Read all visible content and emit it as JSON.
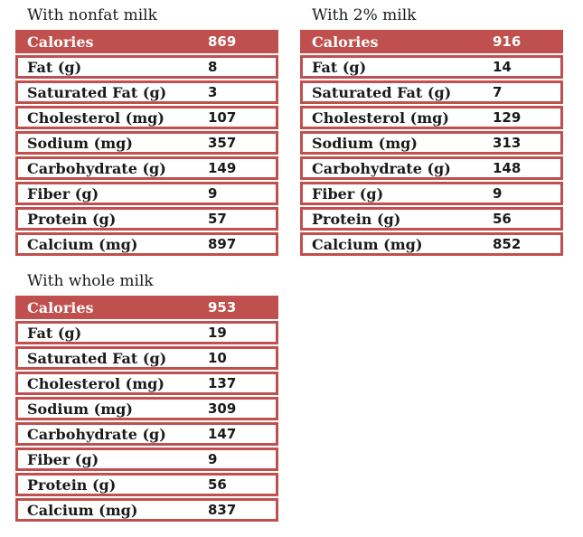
{
  "colors": {
    "accent": "#c0504d",
    "header_text": "#ffffff",
    "body_text": "#1a1a1a",
    "page_background": "#ffffff"
  },
  "tables": [
    {
      "title": "With nonfat milk",
      "header": {
        "label": "Calories",
        "value": "869"
      },
      "rows": [
        {
          "label": "Fat (g)",
          "value": "8"
        },
        {
          "label": "Saturated Fat (g)",
          "value": "3"
        },
        {
          "label": "Cholesterol (mg)",
          "value": "107"
        },
        {
          "label": "Sodium (mg)",
          "value": "357"
        },
        {
          "label": "Carbohydrate (g)",
          "value": "149"
        },
        {
          "label": "Fiber (g)",
          "value": "9"
        },
        {
          "label": "Protein (g)",
          "value": "57"
        },
        {
          "label": "Calcium (mg)",
          "value": "897"
        }
      ]
    },
    {
      "title": "With 2% milk",
      "header": {
        "label": "Calories",
        "value": "916"
      },
      "rows": [
        {
          "label": "Fat (g)",
          "value": "14"
        },
        {
          "label": "Saturated Fat (g)",
          "value": "7"
        },
        {
          "label": "Cholesterol (mg)",
          "value": "129"
        },
        {
          "label": "Sodium (mg)",
          "value": "313"
        },
        {
          "label": "Carbohydrate (g)",
          "value": "148"
        },
        {
          "label": "Fiber (g)",
          "value": "9"
        },
        {
          "label": "Protein (g)",
          "value": "56"
        },
        {
          "label": "Calcium (mg)",
          "value": "852"
        }
      ]
    },
    {
      "title": "With whole milk",
      "header": {
        "label": "Calories",
        "value": "953"
      },
      "rows": [
        {
          "label": "Fat (g)",
          "value": "19"
        },
        {
          "label": "Saturated Fat (g)",
          "value": "10"
        },
        {
          "label": "Cholesterol (mg)",
          "value": "137"
        },
        {
          "label": "Sodium (mg)",
          "value": "309"
        },
        {
          "label": "Carbohydrate (g)",
          "value": "147"
        },
        {
          "label": "Fiber (g)",
          "value": "9"
        },
        {
          "label": "Protein (g)",
          "value": "56"
        },
        {
          "label": "Calcium (mg)",
          "value": "837"
        }
      ]
    }
  ]
}
